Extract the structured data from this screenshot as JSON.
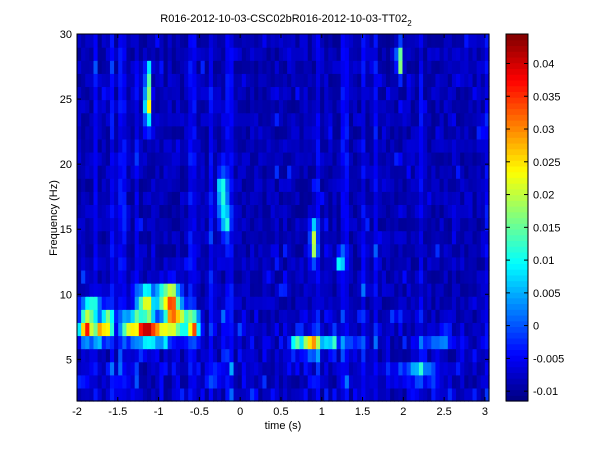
{
  "chart_data": {
    "type": "heatmap",
    "title": "R016-2012-10-03-CSC02bR016-2012-10-03-TT02",
    "title_subscript": "2",
    "xlabel": "time (s)",
    "ylabel": "Frequency (Hz)",
    "xlim": [
      -2,
      3.05
    ],
    "ylim": [
      1.8,
      30
    ],
    "xticks": [
      -2,
      -1.5,
      -1,
      -0.5,
      0,
      0.5,
      1,
      1.5,
      2,
      2.5,
      3
    ],
    "xtick_labels": [
      "-2",
      "-1.5",
      "-1",
      "-0.5",
      "0",
      "0.5",
      "1",
      "1.5",
      "2",
      "2.5",
      "3"
    ],
    "yticks": [
      5,
      10,
      15,
      20,
      25,
      30
    ],
    "ytick_labels": [
      "5",
      "10",
      "15",
      "20",
      "25",
      "30"
    ],
    "colormap": "jet",
    "clim": [
      -0.0115,
      0.0445
    ],
    "colorbar_ticks": [
      -0.01,
      -0.005,
      0,
      0.005,
      0.01,
      0.015,
      0.02,
      0.025,
      0.03,
      0.035,
      0.04
    ],
    "colorbar_tick_labels": [
      "-0.01",
      "-0.005",
      "0",
      "0.005",
      "0.01",
      "0.015",
      "0.02",
      "0.025",
      "0.03",
      "0.035",
      "0.04"
    ],
    "grid": false,
    "background_value": -0.0085,
    "hotspots": [
      {
        "t": -1.88,
        "f": 7.4,
        "dt": 0.09,
        "df": 0.9,
        "v": 0.04
      },
      {
        "t": -1.72,
        "f": 7.0,
        "dt": 0.05,
        "df": 0.6,
        "v": 0.042
      },
      {
        "t": -1.62,
        "f": 7.8,
        "dt": 0.07,
        "df": 1.0,
        "v": 0.03
      },
      {
        "t": -1.82,
        "f": 9.0,
        "dt": 0.12,
        "df": 0.8,
        "v": 0.02
      },
      {
        "t": -1.35,
        "f": 7.6,
        "dt": 0.1,
        "df": 0.9,
        "v": 0.025
      },
      {
        "t": -1.15,
        "f": 7.4,
        "dt": 0.12,
        "df": 1.0,
        "v": 0.042
      },
      {
        "t": -1.15,
        "f": 9.6,
        "dt": 0.1,
        "df": 0.9,
        "v": 0.03
      },
      {
        "t": -0.88,
        "f": 9.8,
        "dt": 0.12,
        "df": 1.0,
        "v": 0.038
      },
      {
        "t": -0.8,
        "f": 8.2,
        "dt": 0.12,
        "df": 1.1,
        "v": 0.04
      },
      {
        "t": -0.58,
        "f": 7.6,
        "dt": 0.08,
        "df": 0.9,
        "v": 0.036
      },
      {
        "t": -0.98,
        "f": 7.0,
        "dt": 0.15,
        "df": 0.6,
        "v": 0.03
      },
      {
        "t": -1.13,
        "f": 24.6,
        "dt": 0.04,
        "df": 1.6,
        "v": 0.033
      },
      {
        "t": -1.13,
        "f": 26.8,
        "dt": 0.03,
        "df": 1.0,
        "v": 0.018
      },
      {
        "t": -0.22,
        "f": 17.6,
        "dt": 0.05,
        "df": 2.0,
        "v": 0.016
      },
      {
        "t": -0.17,
        "f": 15.6,
        "dt": 0.04,
        "df": 1.2,
        "v": 0.01
      },
      {
        "t": 0.9,
        "f": 14.0,
        "dt": 0.04,
        "df": 1.6,
        "v": 0.025
      },
      {
        "t": 0.88,
        "f": 6.1,
        "dt": 0.1,
        "df": 0.6,
        "v": 0.045
      },
      {
        "t": 0.68,
        "f": 6.1,
        "dt": 0.06,
        "df": 0.5,
        "v": 0.022
      },
      {
        "t": 1.1,
        "f": 6.2,
        "dt": 0.08,
        "df": 0.6,
        "v": 0.012
      },
      {
        "t": 1.22,
        "f": 12.4,
        "dt": 0.05,
        "df": 0.8,
        "v": 0.01
      },
      {
        "t": 1.95,
        "f": 28.0,
        "dt": 0.03,
        "df": 1.2,
        "v": 0.028
      },
      {
        "t": 2.2,
        "f": 3.9,
        "dt": 0.2,
        "df": 0.5,
        "v": 0.02
      },
      {
        "t": 1.4,
        "f": 6.0,
        "dt": 0.15,
        "df": 0.4,
        "v": 0.008
      },
      {
        "t": 2.45,
        "f": 6.2,
        "dt": 0.2,
        "df": 0.4,
        "v": 0.004
      },
      {
        "t": -0.3,
        "f": 3.8,
        "dt": 0.1,
        "df": 0.5,
        "v": 0.004
      }
    ]
  }
}
